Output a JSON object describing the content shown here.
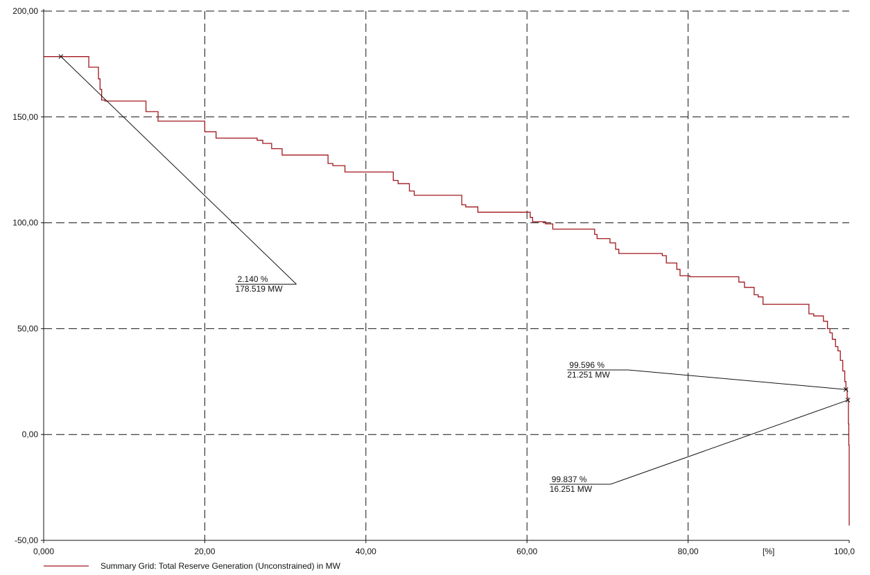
{
  "chart_data": {
    "type": "line",
    "title": "",
    "xlabel": "",
    "ylabel": "",
    "x_unit_label": "[%]",
    "xlim": [
      0,
      100
    ],
    "ylim": [
      -50,
      200
    ],
    "grid": true,
    "legend_placement": "bottom-left",
    "x_ticks": [
      {
        "value": 0,
        "label": "0,000"
      },
      {
        "value": 20,
        "label": "20,00"
      },
      {
        "value": 40,
        "label": "40,00"
      },
      {
        "value": 60,
        "label": "60,00"
      },
      {
        "value": 80,
        "label": "80,00"
      },
      {
        "value": 100,
        "label": "100,0"
      }
    ],
    "y_ticks": [
      {
        "value": 200,
        "label": "200,00"
      },
      {
        "value": 150,
        "label": "150,00"
      },
      {
        "value": 100,
        "label": "100,00"
      },
      {
        "value": 50,
        "label": "50,00"
      },
      {
        "value": 0,
        "label": "0,00"
      },
      {
        "value": -50,
        "label": "-50,00"
      }
    ],
    "series": [
      {
        "name": "Summary Grid: Total Reserve Generation (Unconstrained) in MW",
        "color": "#a0161c",
        "step": true,
        "points": [
          [
            0,
            178.5
          ],
          [
            5.6,
            173.5
          ],
          [
            6.8,
            168.0
          ],
          [
            7.0,
            163.0
          ],
          [
            7.2,
            158.0
          ],
          [
            7.6,
            157.5
          ],
          [
            12.7,
            152.5
          ],
          [
            14.2,
            148.0
          ],
          [
            20.0,
            143.0
          ],
          [
            21.4,
            140.0
          ],
          [
            26.5,
            139.0
          ],
          [
            27.2,
            137.5
          ],
          [
            28.3,
            135.0
          ],
          [
            29.6,
            132.0
          ],
          [
            35.3,
            128.0
          ],
          [
            35.9,
            127.0
          ],
          [
            37.4,
            124.0
          ],
          [
            43.4,
            120.0
          ],
          [
            44.0,
            118.5
          ],
          [
            45.4,
            115.0
          ],
          [
            46.0,
            113.0
          ],
          [
            51.9,
            108.5
          ],
          [
            52.4,
            107.5
          ],
          [
            53.9,
            105.0
          ],
          [
            60.4,
            102.5
          ],
          [
            60.7,
            100.5
          ],
          [
            62.3,
            99.5
          ],
          [
            63.2,
            97.0
          ],
          [
            68.4,
            94.5
          ],
          [
            68.7,
            92.5
          ],
          [
            70.3,
            90.5
          ],
          [
            71.0,
            87.5
          ],
          [
            71.4,
            85.5
          ],
          [
            76.8,
            84.5
          ],
          [
            77.3,
            81.0
          ],
          [
            78.6,
            78.0
          ],
          [
            79.0,
            75.0
          ],
          [
            80.2,
            74.5
          ],
          [
            86.3,
            72.0
          ],
          [
            87.0,
            69.5
          ],
          [
            88.2,
            66.0
          ],
          [
            88.7,
            65.0
          ],
          [
            89.3,
            61.5
          ],
          [
            95.0,
            57.0
          ],
          [
            95.6,
            56.0
          ],
          [
            96.8,
            53.5
          ],
          [
            97.3,
            50.0
          ],
          [
            97.6,
            48.0
          ],
          [
            97.9,
            45.0
          ],
          [
            98.3,
            41.5
          ],
          [
            98.6,
            39.5
          ],
          [
            98.9,
            35.0
          ],
          [
            99.2,
            30.0
          ],
          [
            99.45,
            25.0
          ],
          [
            99.596,
            21.251
          ],
          [
            99.75,
            17.5
          ],
          [
            99.837,
            16.251
          ],
          [
            99.9,
            5.0
          ],
          [
            99.95,
            -5.0
          ],
          [
            100.0,
            -25.0
          ],
          [
            100.0,
            -43.0
          ]
        ]
      }
    ],
    "annotations": [
      {
        "line1": "2.140 %",
        "line2": "178.519 MW",
        "x": 2.14,
        "y": 178.519,
        "label_x": 23.8,
        "label_y": 71.0
      },
      {
        "line1": "99.596 %",
        "line2": "21.251 MW",
        "x": 99.596,
        "y": 21.251,
        "label_x": 65.0,
        "label_y": 30.5
      },
      {
        "line1": "99.837 %",
        "line2": "16.251 MW",
        "x": 99.837,
        "y": 16.251,
        "label_x": 62.8,
        "label_y": -23.5
      }
    ]
  }
}
